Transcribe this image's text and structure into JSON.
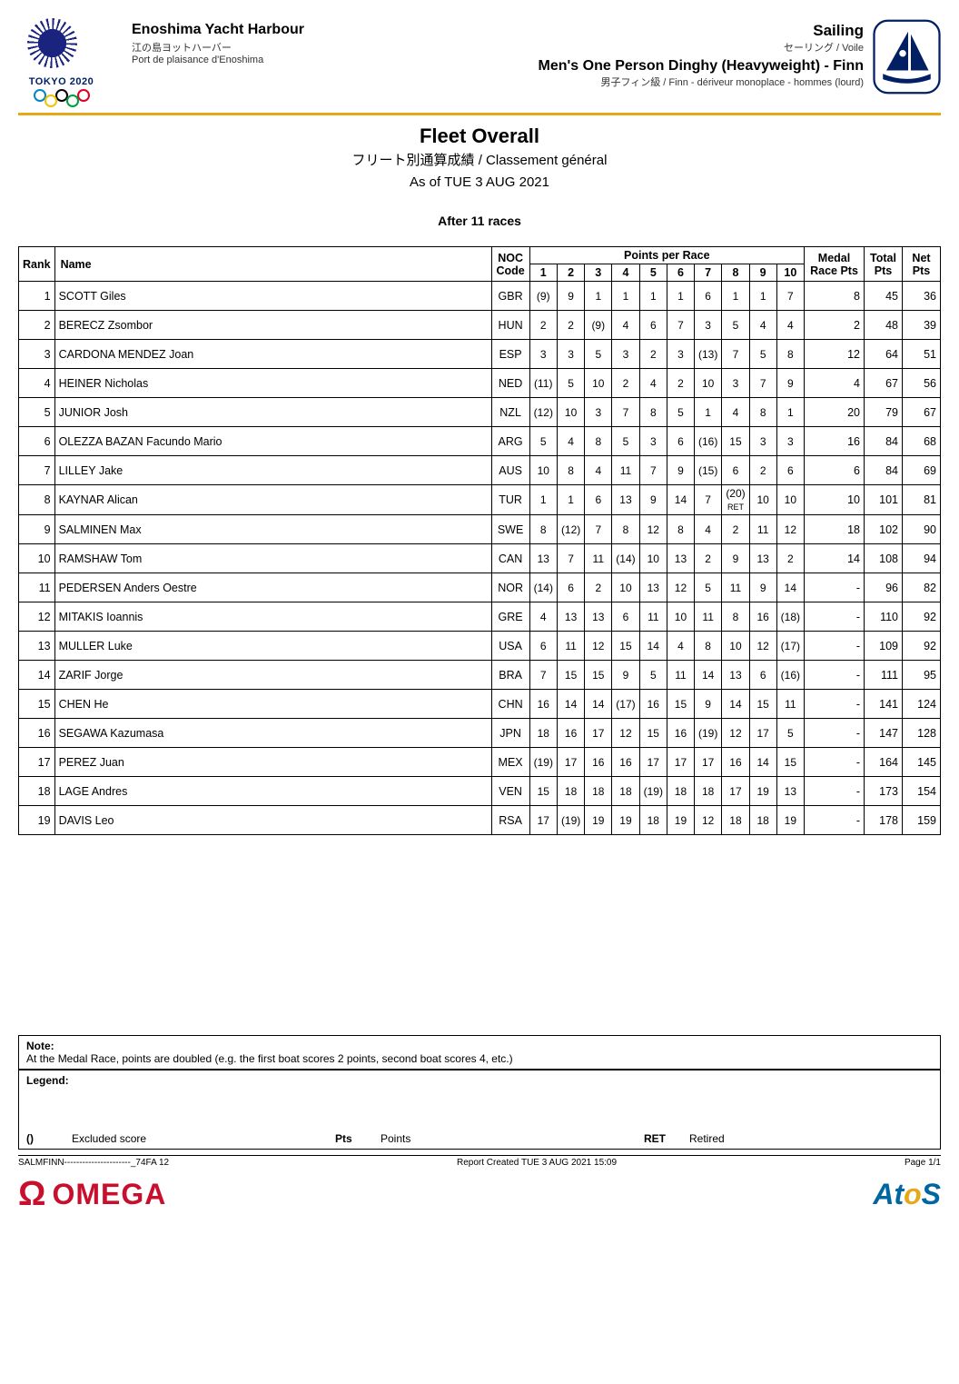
{
  "header": {
    "tokyo_text": "TOKYO 2020",
    "venue_en": "Enoshima Yacht Harbour",
    "venue_jp": "江の島ヨットハーバー",
    "venue_fr": "Port de plaisance d'Enoshima",
    "sport_en": "Sailing",
    "sport_jpfr": "セーリング / Voile",
    "event_en": "Men's One Person Dinghy (Heavyweight) - Finn",
    "event_jpfr": "男子フィン級 / Finn - dériveur monoplace - hommes (lourd)"
  },
  "title": {
    "en": "Fleet Overall",
    "jpfr": "フリート別通算成績 / Classement général",
    "asof": "As of TUE 3 AUG 2021",
    "after": "After 11 races"
  },
  "columns": {
    "rank": "Rank",
    "name": "Name",
    "noc": "NOC Code",
    "ppr": "Points per Race",
    "races": [
      "1",
      "2",
      "3",
      "4",
      "5",
      "6",
      "7",
      "8",
      "9",
      "10"
    ],
    "medal": "Medal Race Pts",
    "total": "Total Pts",
    "net": "Net Pts"
  },
  "rows": [
    {
      "rank": "1",
      "name": "SCOTT Giles",
      "noc": "GBR",
      "r": [
        "(9)",
        "9",
        "1",
        "1",
        "1",
        "1",
        "6",
        "1",
        "1",
        "7"
      ],
      "medal": "8",
      "total": "45",
      "net": "36"
    },
    {
      "rank": "2",
      "name": "BERECZ Zsombor",
      "noc": "HUN",
      "r": [
        "2",
        "2",
        "(9)",
        "4",
        "6",
        "7",
        "3",
        "5",
        "4",
        "4"
      ],
      "medal": "2",
      "total": "48",
      "net": "39"
    },
    {
      "rank": "3",
      "name": "CARDONA MENDEZ Joan",
      "noc": "ESP",
      "r": [
        "3",
        "3",
        "5",
        "3",
        "2",
        "3",
        "(13)",
        "7",
        "5",
        "8"
      ],
      "medal": "12",
      "total": "64",
      "net": "51"
    },
    {
      "rank": "4",
      "name": "HEINER Nicholas",
      "noc": "NED",
      "r": [
        "(11)",
        "5",
        "10",
        "2",
        "4",
        "2",
        "10",
        "3",
        "7",
        "9"
      ],
      "medal": "4",
      "total": "67",
      "net": "56"
    },
    {
      "rank": "5",
      "name": "JUNIOR Josh",
      "noc": "NZL",
      "r": [
        "(12)",
        "10",
        "3",
        "7",
        "8",
        "5",
        "1",
        "4",
        "8",
        "1"
      ],
      "medal": "20",
      "total": "79",
      "net": "67"
    },
    {
      "rank": "6",
      "name": "OLEZZA BAZAN Facundo Mario",
      "noc": "ARG",
      "r": [
        "5",
        "4",
        "8",
        "5",
        "3",
        "6",
        "(16)",
        "15",
        "3",
        "3"
      ],
      "medal": "16",
      "total": "84",
      "net": "68"
    },
    {
      "rank": "7",
      "name": "LILLEY Jake",
      "noc": "AUS",
      "r": [
        "10",
        "8",
        "4",
        "11",
        "7",
        "9",
        "(15)",
        "6",
        "2",
        "6"
      ],
      "medal": "6",
      "total": "84",
      "net": "69"
    },
    {
      "rank": "8",
      "name": "KAYNAR Alican",
      "noc": "TUR",
      "r": [
        "1",
        "1",
        "6",
        "13",
        "9",
        "14",
        "7",
        "(20)\nRET",
        "10",
        "10"
      ],
      "medal": "10",
      "total": "101",
      "net": "81"
    },
    {
      "rank": "9",
      "name": "SALMINEN Max",
      "noc": "SWE",
      "r": [
        "8",
        "(12)",
        "7",
        "8",
        "12",
        "8",
        "4",
        "2",
        "11",
        "12"
      ],
      "medal": "18",
      "total": "102",
      "net": "90"
    },
    {
      "rank": "10",
      "name": "RAMSHAW Tom",
      "noc": "CAN",
      "r": [
        "13",
        "7",
        "11",
        "(14)",
        "10",
        "13",
        "2",
        "9",
        "13",
        "2"
      ],
      "medal": "14",
      "total": "108",
      "net": "94"
    },
    {
      "rank": "11",
      "name": "PEDERSEN Anders Oestre",
      "noc": "NOR",
      "r": [
        "(14)",
        "6",
        "2",
        "10",
        "13",
        "12",
        "5",
        "11",
        "9",
        "14"
      ],
      "medal": "-",
      "total": "96",
      "net": "82"
    },
    {
      "rank": "12",
      "name": "MITAKIS Ioannis",
      "noc": "GRE",
      "r": [
        "4",
        "13",
        "13",
        "6",
        "11",
        "10",
        "11",
        "8",
        "16",
        "(18)"
      ],
      "medal": "-",
      "total": "110",
      "net": "92"
    },
    {
      "rank": "13",
      "name": "MULLER Luke",
      "noc": "USA",
      "r": [
        "6",
        "11",
        "12",
        "15",
        "14",
        "4",
        "8",
        "10",
        "12",
        "(17)"
      ],
      "medal": "-",
      "total": "109",
      "net": "92"
    },
    {
      "rank": "14",
      "name": "ZARIF Jorge",
      "noc": "BRA",
      "r": [
        "7",
        "15",
        "15",
        "9",
        "5",
        "11",
        "14",
        "13",
        "6",
        "(16)"
      ],
      "medal": "-",
      "total": "111",
      "net": "95"
    },
    {
      "rank": "15",
      "name": "CHEN He",
      "noc": "CHN",
      "r": [
        "16",
        "14",
        "14",
        "(17)",
        "16",
        "15",
        "9",
        "14",
        "15",
        "11"
      ],
      "medal": "-",
      "total": "141",
      "net": "124"
    },
    {
      "rank": "16",
      "name": "SEGAWA Kazumasa",
      "noc": "JPN",
      "r": [
        "18",
        "16",
        "17",
        "12",
        "15",
        "16",
        "(19)",
        "12",
        "17",
        "5"
      ],
      "medal": "-",
      "total": "147",
      "net": "128"
    },
    {
      "rank": "17",
      "name": "PEREZ Juan",
      "noc": "MEX",
      "r": [
        "(19)",
        "17",
        "16",
        "16",
        "17",
        "17",
        "17",
        "16",
        "14",
        "15"
      ],
      "medal": "-",
      "total": "164",
      "net": "145"
    },
    {
      "rank": "18",
      "name": "LAGE Andres",
      "noc": "VEN",
      "r": [
        "15",
        "18",
        "18",
        "18",
        "(19)",
        "18",
        "18",
        "17",
        "19",
        "13"
      ],
      "medal": "-",
      "total": "173",
      "net": "154"
    },
    {
      "rank": "19",
      "name": "DAVIS Leo",
      "noc": "RSA",
      "r": [
        "17",
        "(19)",
        "19",
        "19",
        "18",
        "19",
        "12",
        "18",
        "18",
        "19"
      ],
      "medal": "-",
      "total": "178",
      "net": "159"
    }
  ],
  "note": {
    "label": "Note:",
    "text": "At the Medal Race, points are doubled (e.g. the first boat scores 2 points, second boat scores 4, etc.)"
  },
  "legend": {
    "label": "Legend:",
    "items": [
      {
        "sym": "()",
        "desc": "Excluded score"
      },
      {
        "sym": "Pts",
        "desc": "Points"
      },
      {
        "sym": "RET",
        "desc": "Retired"
      }
    ]
  },
  "footer": {
    "left": "SALMFINN----------------------_74FA 12",
    "center": "Report Created TUE 3 AUG 2021 15:09",
    "right": "Page 1/1",
    "sponsor1": "OMEGA",
    "sponsor2_a": "At",
    "sponsor2_o": "o",
    "sponsor2_s": "S"
  },
  "style": {
    "accent_line": "#e6a817",
    "tokyo_blue": "#002063",
    "omega_red": "#c8102e",
    "atos_blue": "#0066a1",
    "border": "#000000",
    "font_main": "Arial, Helvetica, sans-serif"
  }
}
